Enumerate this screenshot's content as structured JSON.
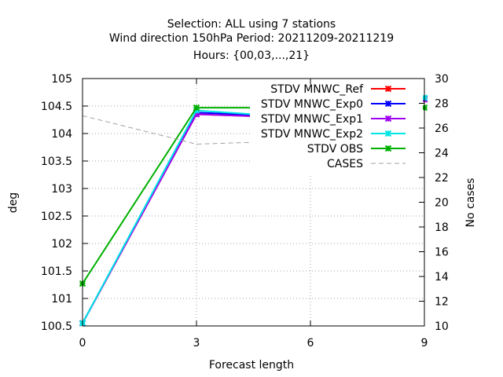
{
  "chart_data": {
    "type": "line",
    "title_lines": [
      "Selection: ALL using     7 stations",
      "Wind direction 150hPa   Period: 20211209-20211219",
      "Hours: {00,03,...,21}"
    ],
    "xlabel": "Forecast length",
    "ylabel": "deg",
    "y2label": "No cases",
    "x": [
      0,
      3,
      6,
      9
    ],
    "xlim": [
      0,
      9
    ],
    "ylim": [
      100.5,
      105
    ],
    "y2lim": [
      10,
      30
    ],
    "x_ticks": [
      "0",
      "3",
      "6",
      "9"
    ],
    "y_ticks": [
      "100.5",
      "101",
      "101.5",
      "102",
      "102.5",
      "103",
      "103.5",
      "104",
      "104.5",
      "105"
    ],
    "y2_ticks": [
      "10",
      "12",
      "14",
      "16",
      "18",
      "20",
      "22",
      "24",
      "26",
      "28",
      "30"
    ],
    "grid": true,
    "legend_position": "top-right",
    "series": [
      {
        "name": "STDV MNWC_Ref",
        "axis": "y1",
        "color": "#ff0000",
        "marker": "x",
        "values": [
          100.55,
          104.35,
          104.28,
          104.62
        ]
      },
      {
        "name": "STDV MNWC_Exp0",
        "axis": "y1",
        "color": "#0000ff",
        "marker": "x",
        "values": [
          100.55,
          104.38,
          104.3,
          104.63
        ]
      },
      {
        "name": "STDV MNWC_Exp1",
        "axis": "y1",
        "color": "#a000f0",
        "marker": "x",
        "values": [
          100.55,
          104.35,
          104.28,
          104.62
        ]
      },
      {
        "name": "STDV MNWC_Exp2",
        "axis": "y1",
        "color": "#00e5e5",
        "marker": "x",
        "values": [
          100.55,
          104.42,
          104.28,
          104.65
        ]
      },
      {
        "name": "STDV OBS",
        "axis": "y1",
        "color": "#00b000",
        "marker": "x",
        "values": [
          101.27,
          104.47,
          104.47,
          104.47
        ]
      },
      {
        "name": "CASES",
        "axis": "y2",
        "color": "#a0a0a0",
        "dashed": true,
        "values": [
          27,
          24.7,
          25,
          25.7
        ]
      }
    ]
  }
}
